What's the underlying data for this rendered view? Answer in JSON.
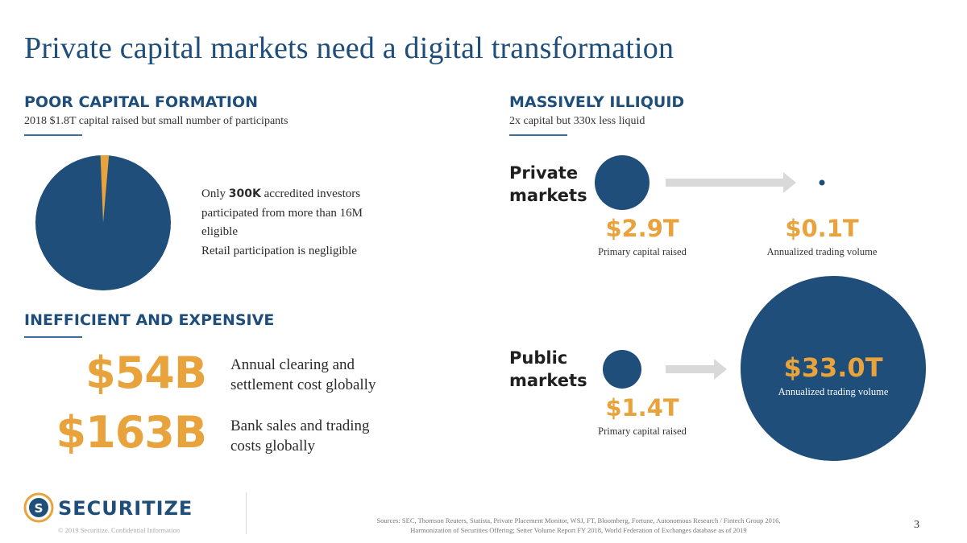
{
  "title": "Private capital markets need a digital transformation",
  "poor_capital": {
    "heading": "POOR CAPITAL FORMATION",
    "subheading": "2018 $1.8T capital raised but small number of participants",
    "text_prefix": "Only ",
    "text_bold": "300K",
    "text_line1_rest": " accredited investors",
    "text_line2": "participated from more than 16M",
    "text_line3": "eligible",
    "text_line4": "Retail participation is negligible",
    "pie": {
      "accredited_investors": 300,
      "eligible": 16000,
      "main_color": "#1e4e79",
      "slice_color": "#e8a33c"
    }
  },
  "inefficient": {
    "heading": "INEFFICIENT AND EXPENSIVE",
    "items": [
      {
        "value": "$54B",
        "line1": "Annual clearing and",
        "line2": "settlement cost globally"
      },
      {
        "value": "$163B",
        "line1": "Bank sales and trading",
        "line2": "costs globally"
      }
    ]
  },
  "illiquid": {
    "heading": "MASSIVELY ILLIQUID",
    "subheading": "2x capital but 330x less liquid",
    "private": {
      "label_line1": "Private",
      "label_line2": "markets",
      "raised_value": "$2.9T",
      "raised_caption": "Primary capital raised",
      "volume_value": "$0.1T",
      "volume_caption": "Annualized trading volume"
    },
    "public": {
      "label_line1": "Public",
      "label_line2": "markets",
      "raised_value": "$1.4T",
      "raised_caption": "Primary capital raised",
      "volume_value": "$33.0T",
      "volume_caption": "Annualized trading volume"
    }
  },
  "footer": {
    "logo": "SECURITIZE",
    "copyright": "© 2019 Securitize. Confidential Information",
    "sources_line1": "Sources:  SEC, Thomson Reuters, Statista, Private Placement Monitor, WSJ, FT, Bloomberg, Fortune, Autonomous Research / Fintech Group 2016,",
    "sources_line2": "Harmonization of Securities Offering; Setter Volume Report FY 2018, World Federation of Exchanges database as of 2019",
    "page": "3"
  },
  "colors": {
    "navy": "#1e4e79",
    "gold": "#e8a33c",
    "arrow": "#d9d9d9"
  }
}
